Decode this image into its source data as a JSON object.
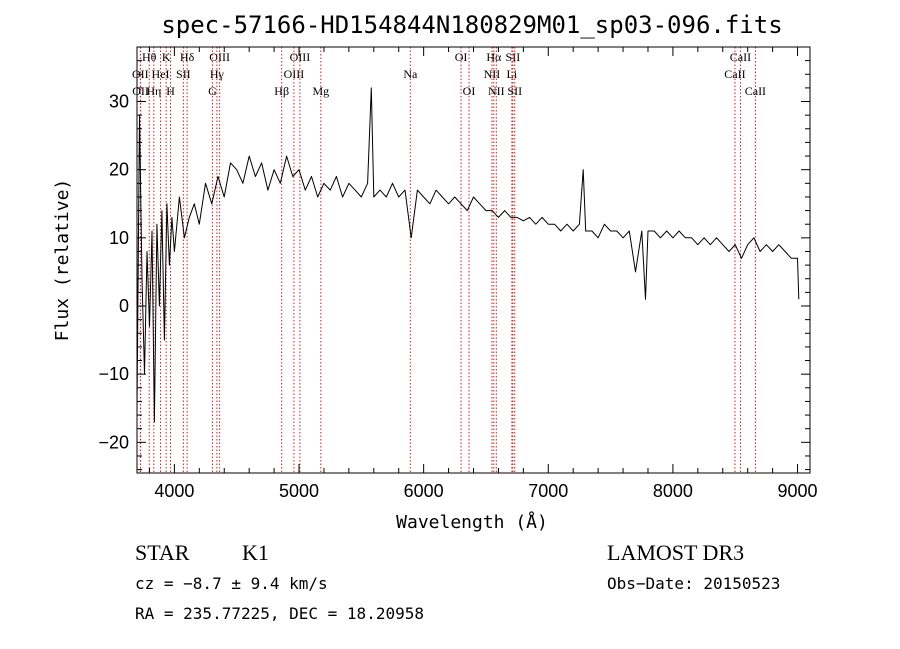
{
  "chart_data": {
    "type": "line",
    "title": "spec-57166-HD154844N180829M01_sp03-096.fits",
    "xlabel": "Wavelength (Å)",
    "ylabel": "Flux (relative)",
    "xlim": [
      3700,
      9100
    ],
    "ylim": [
      -24.5,
      38
    ],
    "xticks": [
      4000,
      5000,
      6000,
      7000,
      8000,
      9000
    ],
    "yticks": [
      -20,
      -10,
      0,
      10,
      20,
      30
    ],
    "xtick_labels": [
      "4000",
      "5000",
      "6000",
      "7000",
      "8000",
      "9000"
    ],
    "ytick_labels": [
      "−20",
      "−10",
      "0",
      "10",
      "20",
      "30"
    ],
    "spectrum_series": {
      "name": "flux",
      "x": [
        3700,
        3720,
        3740,
        3760,
        3780,
        3800,
        3820,
        3840,
        3860,
        3880,
        3900,
        3920,
        3940,
        3960,
        3980,
        4000,
        4040,
        4080,
        4120,
        4160,
        4200,
        4250,
        4300,
        4350,
        4400,
        4450,
        4500,
        4550,
        4600,
        4650,
        4700,
        4750,
        4800,
        4850,
        4900,
        4950,
        5000,
        5050,
        5100,
        5150,
        5200,
        5250,
        5300,
        5350,
        5400,
        5450,
        5500,
        5550,
        5580,
        5600,
        5650,
        5700,
        5750,
        5800,
        5850,
        5900,
        5950,
        6000,
        6050,
        6100,
        6150,
        6200,
        6250,
        6300,
        6350,
        6400,
        6450,
        6500,
        6550,
        6600,
        6650,
        6700,
        6750,
        6800,
        6850,
        6900,
        6950,
        7000,
        7050,
        7100,
        7150,
        7200,
        7250,
        7280,
        7300,
        7350,
        7400,
        7450,
        7500,
        7550,
        7600,
        7650,
        7700,
        7750,
        7780,
        7800,
        7850,
        7900,
        7950,
        8000,
        8050,
        8100,
        8150,
        8200,
        8250,
        8300,
        8350,
        8400,
        8450,
        8500,
        8550,
        8600,
        8650,
        8700,
        8750,
        8800,
        8850,
        8900,
        8950,
        9000,
        9010
      ],
      "values": [
        -15,
        28,
        4,
        -10,
        8,
        -3,
        11,
        -17,
        12,
        0,
        14,
        -5,
        15,
        6,
        13,
        8,
        16,
        10,
        13,
        15,
        12,
        18,
        15,
        19,
        16,
        21,
        20,
        18,
        22,
        19,
        21,
        17,
        20,
        18,
        22,
        19,
        20,
        17,
        19,
        16,
        18,
        17,
        19,
        16,
        18,
        17,
        16,
        18,
        32,
        16,
        17,
        16,
        18,
        16,
        17,
        10,
        17,
        16,
        15,
        17,
        16,
        15,
        16,
        15,
        14,
        16,
        15,
        14,
        14,
        13,
        14,
        13,
        13,
        12.5,
        13,
        12,
        13,
        12,
        12,
        11,
        12,
        11,
        12,
        20,
        11,
        11,
        10,
        12,
        11,
        11,
        10,
        11,
        5,
        11,
        1,
        11,
        11,
        10,
        11,
        10,
        11,
        10,
        10,
        9,
        10,
        9,
        10,
        9,
        8,
        9,
        7,
        9,
        10,
        8,
        9,
        8,
        9,
        8,
        7,
        7,
        1
      ]
    },
    "spectral_lines": [
      {
        "label": "Hθ",
        "wavelength": 3798,
        "row": 1
      },
      {
        "label": "OII",
        "wavelength": 3727,
        "row": 2
      },
      {
        "label": "OII",
        "wavelength": 3729,
        "row": 3
      },
      {
        "label": "K",
        "wavelength": 3934,
        "row": 1
      },
      {
        "label": "Hη",
        "wavelength": 3835,
        "row": 3
      },
      {
        "label": "HeI",
        "wavelength": 3889,
        "row": 2
      },
      {
        "label": "SII",
        "wavelength": 4072,
        "row": 2
      },
      {
        "label": "H",
        "wavelength": 3969,
        "row": 3
      },
      {
        "label": "Hδ",
        "wavelength": 4102,
        "row": 1
      },
      {
        "label": "OIII",
        "wavelength": 4363,
        "row": 1
      },
      {
        "label": "Hγ",
        "wavelength": 4341,
        "row": 2
      },
      {
        "label": "G",
        "wavelength": 4305,
        "row": 3
      },
      {
        "label": "Hβ",
        "wavelength": 4861,
        "row": 3
      },
      {
        "label": "OIII",
        "wavelength": 5007,
        "row": 1
      },
      {
        "label": "OIII",
        "wavelength": 4959,
        "row": 2
      },
      {
        "label": "Mg",
        "wavelength": 5175,
        "row": 3
      },
      {
        "label": "Na",
        "wavelength": 5893,
        "row": 2
      },
      {
        "label": "OI",
        "wavelength": 6300,
        "row": 1
      },
      {
        "label": "OI",
        "wavelength": 6364,
        "row": 3
      },
      {
        "label": "Hα",
        "wavelength": 6563,
        "row": 1
      },
      {
        "label": "NII",
        "wavelength": 6548,
        "row": 2
      },
      {
        "label": "NII",
        "wavelength": 6583,
        "row": 3
      },
      {
        "label": "SII",
        "wavelength": 6716,
        "row": 1
      },
      {
        "label": "Li",
        "wavelength": 6708,
        "row": 2
      },
      {
        "label": "SII",
        "wavelength": 6731,
        "row": 3
      },
      {
        "label": "CaII",
        "wavelength": 8542,
        "row": 1
      },
      {
        "label": "CaII",
        "wavelength": 8498,
        "row": 2
      },
      {
        "label": "CaII",
        "wavelength": 8662,
        "row": 3
      }
    ],
    "line_color": "#cc2222"
  },
  "info": {
    "object_class": "STAR",
    "subclass": "K1",
    "survey": "LAMOST DR3",
    "cz": "cz = −8.7 ± 9.4 km/s",
    "obs_date": "Obs−Date: 20150523",
    "coords": "RA = 235.77225, DEC =  18.20958"
  }
}
